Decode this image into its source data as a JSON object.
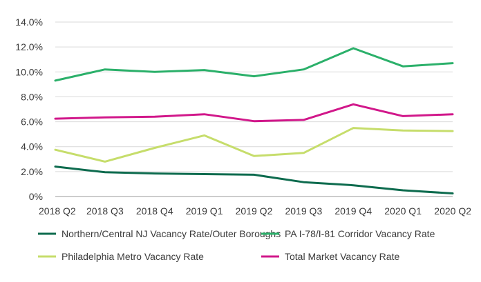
{
  "chart_data": {
    "type": "line",
    "categories": [
      "2018 Q2",
      "2018 Q3",
      "2018 Q4",
      "2019 Q1",
      "2019 Q2",
      "2019 Q3",
      "2019 Q4",
      "2020 Q1",
      "2020 Q2"
    ],
    "ylim": [
      0,
      14
    ],
    "yticks": [
      "0%",
      "2.0%",
      "4.0%",
      "6.0%",
      "8.0%",
      "10.0%",
      "12.0%",
      "14.0%"
    ],
    "ytick_values": [
      0,
      2,
      4,
      6,
      8,
      10,
      12,
      14
    ],
    "grid": "horizontal",
    "legend_position": "bottom",
    "series": [
      {
        "name": "Northern/Central NJ Vacancy Rate/Outer Boroughs",
        "color": "#0d6b4e",
        "values": [
          2.4,
          1.95,
          1.85,
          1.8,
          1.75,
          1.15,
          0.9,
          0.5,
          0.25
        ]
      },
      {
        "name": "PA I-78/I-81 Corridor Vacancy Rate",
        "color": "#2bb06a",
        "values": [
          9.3,
          10.2,
          10.0,
          10.15,
          9.65,
          10.2,
          11.9,
          10.45,
          10.7
        ]
      },
      {
        "name": "Philadelphia Metro Vacancy Rate",
        "color": "#c6dd6b",
        "values": [
          3.75,
          2.8,
          3.9,
          4.9,
          3.25,
          3.5,
          5.5,
          5.3,
          5.25
        ]
      },
      {
        "name": "Total Market Vacancy Rate",
        "color": "#d1178a",
        "values": [
          6.25,
          6.35,
          6.4,
          6.6,
          6.05,
          6.15,
          7.4,
          6.45,
          6.6
        ]
      }
    ]
  }
}
